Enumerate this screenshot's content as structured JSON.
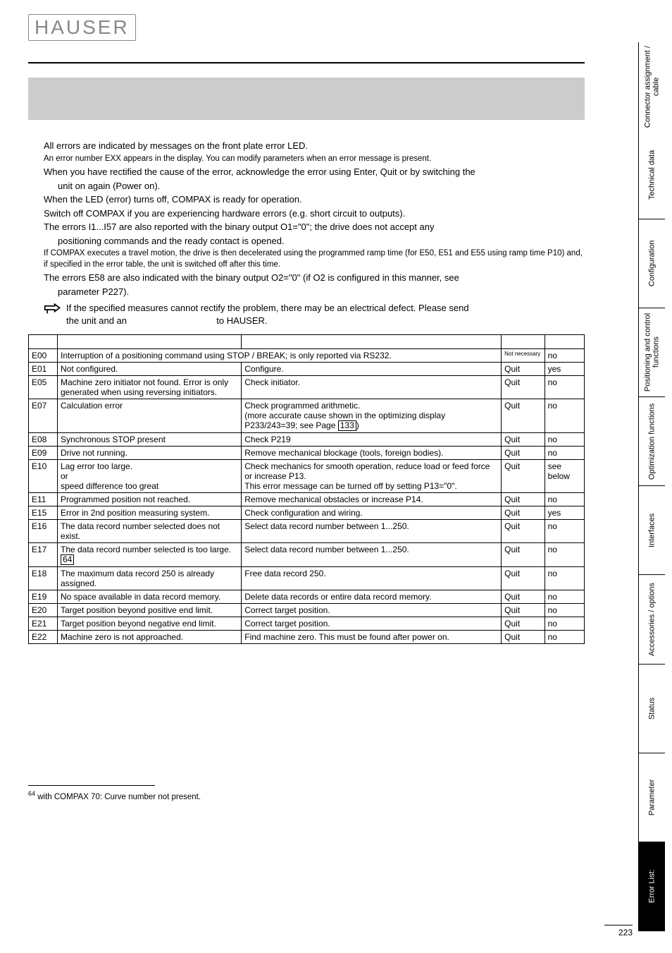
{
  "logo_text": "HAUSER",
  "intro": {
    "p1": "All errors are indicated by messages on the front plate error LED.",
    "p2": "An error number EXX appears in the display. You can modify parameters when an error message is present.",
    "p3": "When you have rectified the cause of the error, acknowledge the error using Enter, Quit or by switching the",
    "p3b": "unit on again (Power on).",
    "p4": "When the LED (error) turns off, COMPAX is ready for operation.",
    "p5": "Switch off COMPAX if you are experiencing hardware errors (e.g. short circuit to outputs).",
    "p6": "The errors I1...I57 are also reported with the binary output O1=\"0\"; the drive does not accept any",
    "p6b": "positioning commands and the ready contact is opened.",
    "p7": "If COMPAX executes a travel motion, the drive is then decelerated using the programmed ramp time (for E50, E51 and E55 using ramp time P10) and, if specified in the error table, the unit is switched off after this time.",
    "p8": "The errors   E58 are also indicated with the binary output O2=\"0\" (if O2 is configured in this manner, see",
    "p8b": "parameter P227).",
    "note1": "If the specified measures cannot rectify the problem, there may be an electrical defect. Please send",
    "note2a": "the unit and an",
    "note2b": "to HAUSER."
  },
  "table": {
    "headers": [
      "",
      "",
      "",
      "",
      ""
    ],
    "rows": [
      {
        "code": "E00",
        "cause": "Interruption of a positioning command using STOP / BREAK; is only reported via RS232.",
        "measure": "",
        "quit": "Not necessary",
        "hw": "no",
        "span": true,
        "tiny": true
      },
      {
        "code": "E01",
        "cause": "Not configured.",
        "measure": "Configure.",
        "quit": "Quit",
        "hw": "yes"
      },
      {
        "code": "E05",
        "cause": "Machine zero initiator not found. Error is only generated when using reversing initiators.",
        "measure": "Check initiator.",
        "quit": "Quit",
        "hw": "no"
      },
      {
        "code": "E07",
        "cause": "Calculation error",
        "measure": "Check programmed arithmetic.\n(more accurate cause shown in the optimizing display P233/243=39; see Page [133])",
        "quit": "Quit",
        "hw": "no",
        "ref": "133"
      },
      {
        "code": "E08",
        "cause": "Synchronous STOP present",
        "measure": "Check P219",
        "quit": "Quit",
        "hw": "no"
      },
      {
        "code": "E09",
        "cause": "Drive not running.",
        "measure": "Remove mechanical blockage (tools, foreign bodies).",
        "quit": "Quit",
        "hw": "no"
      },
      {
        "code": "E10",
        "cause": "Lag error too large.\nor\nspeed difference too great",
        "measure": "Check mechanics for smooth operation, reduce load or feed force or increase P13.\nThis error message can be turned off by setting P13=\"0\".",
        "quit": "Quit",
        "hw": "see below"
      },
      {
        "code": "E11",
        "cause": "Programmed position not reached.",
        "measure": "Remove mechanical obstacles or increase P14.",
        "quit": "Quit",
        "hw": "no"
      },
      {
        "code": "E15",
        "cause": "Error in 2nd position measuring system.",
        "measure": "Check configuration and wiring.",
        "quit": "Quit",
        "hw": "yes"
      },
      {
        "code": "E16",
        "cause": "The data record number selected does not exist.",
        "measure": "Select data record number between 1...250.",
        "quit": "Quit",
        "hw": "no"
      },
      {
        "code": "E17",
        "cause": "The data record number selected is too large.[64]",
        "measure": "Select data record number between 1...250.",
        "quit": "Quit",
        "hw": "no",
        "sup": "64"
      },
      {
        "code": "E18",
        "cause": "The maximum data record 250 is already assigned.",
        "measure": "Free data record 250.",
        "quit": "Quit",
        "hw": "no"
      },
      {
        "code": "E19",
        "cause": "No space available in data record memory.",
        "measure": "Delete data records or entire data record memory.",
        "quit": "Quit",
        "hw": "no"
      },
      {
        "code": "E20",
        "cause": "Target position beyond positive end limit.",
        "measure": "Correct target position.",
        "quit": "Quit",
        "hw": "no"
      },
      {
        "code": "E21",
        "cause": "Target position beyond negative end limit.",
        "measure": "Correct target position.",
        "quit": "Quit",
        "hw": "no"
      },
      {
        "code": "E22",
        "cause": "Machine zero is not approached.",
        "measure": "Find machine zero. This must be found after power on.",
        "quit": "Quit",
        "hw": "no"
      }
    ]
  },
  "footnote": {
    "num": "64",
    "text": "with COMPAX 70: Curve number not present."
  },
  "page_number": "223",
  "tabs": [
    "Connector assignment / cable",
    "Technical data",
    "Configuration",
    "Positioning and control functions",
    "Optimization functions",
    "Interfaces",
    "Accessories / options",
    "Status",
    "Parameter",
    "Error List:"
  ],
  "active_tab_index": 9,
  "colors": {
    "band_bg": "#cccccc",
    "text": "#000000",
    "logo": "#888888",
    "active_tab_bg": "#000000",
    "active_tab_fg": "#ffffff"
  }
}
